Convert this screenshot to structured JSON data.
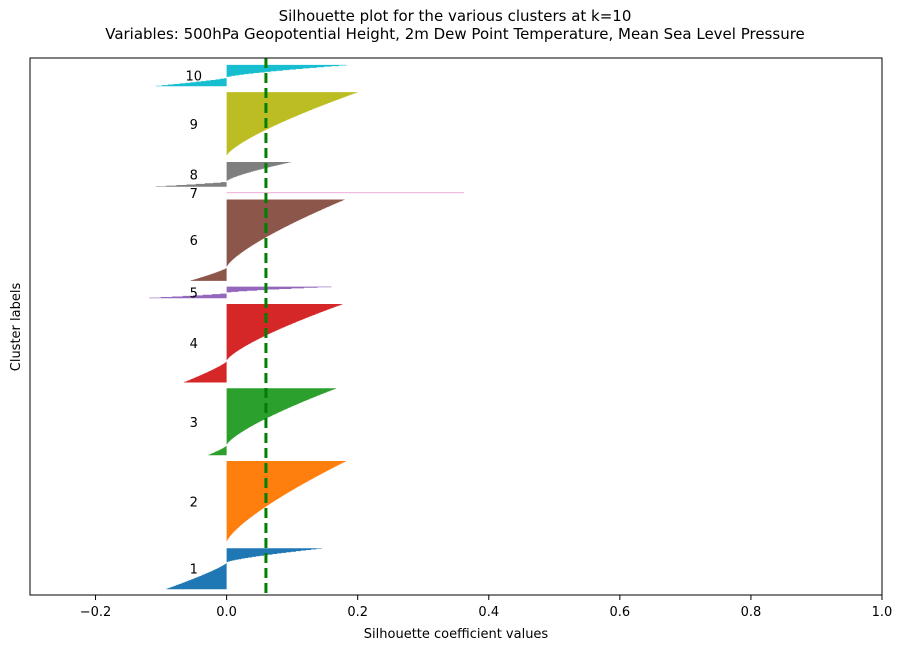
{
  "chart_data": {
    "type": "silhouette",
    "title": "Silhouette plot for the various clusters at k=10",
    "subtitle": "Variables: 500hPa Geopotential Height, 2m Dew Point Temperature, Mean Sea Level Pressure",
    "xlabel": "Silhouette coefficient values",
    "ylabel": "Cluster labels",
    "xlim": [
      -0.3,
      1.0
    ],
    "xticks": [
      -0.2,
      0.0,
      0.2,
      0.4,
      0.6,
      0.8,
      1.0
    ],
    "xtick_labels": [
      "−0.2",
      "0.0",
      "0.2",
      "0.4",
      "0.6",
      "0.8",
      "1.0"
    ],
    "average_silhouette": 0.06,
    "average_line_color": "#008000",
    "grid": false,
    "clusters": [
      {
        "label": "1",
        "color": "#1f77b4",
        "size": 71,
        "max": 0.145,
        "min": -0.092,
        "pos_fraction": 0.35
      },
      {
        "label": "2",
        "color": "#ff7f0e",
        "size": 141,
        "max": 0.182,
        "min": 0.0,
        "pos_fraction": 1.0
      },
      {
        "label": "3",
        "color": "#2ca02c",
        "size": 116,
        "max": 0.167,
        "min": -0.028,
        "pos_fraction": 0.85
      },
      {
        "label": "4",
        "color": "#d62728",
        "size": 136,
        "max": 0.177,
        "min": -0.065,
        "pos_fraction": 0.73
      },
      {
        "label": "5",
        "color": "#9467bd",
        "size": 20,
        "max": 0.16,
        "min": -0.118,
        "pos_fraction": 0.55
      },
      {
        "label": "6",
        "color": "#8c564b",
        "size": 141,
        "max": 0.18,
        "min": -0.055,
        "pos_fraction": 0.84
      },
      {
        "label": "7",
        "color": "#e377c2",
        "size": 2,
        "max": 0.362,
        "min": 0.0,
        "pos_fraction": 1.0
      },
      {
        "label": "8",
        "color": "#7f7f7f",
        "size": 43,
        "max": 0.098,
        "min": -0.108,
        "pos_fraction": 0.8
      },
      {
        "label": "9",
        "color": "#bcbd22",
        "size": 111,
        "max": 0.2,
        "min": 0.0,
        "pos_fraction": 1.0
      },
      {
        "label": "10",
        "color": "#17becf",
        "size": 37,
        "max": 0.183,
        "min": -0.108,
        "pos_fraction": 0.6
      }
    ]
  }
}
